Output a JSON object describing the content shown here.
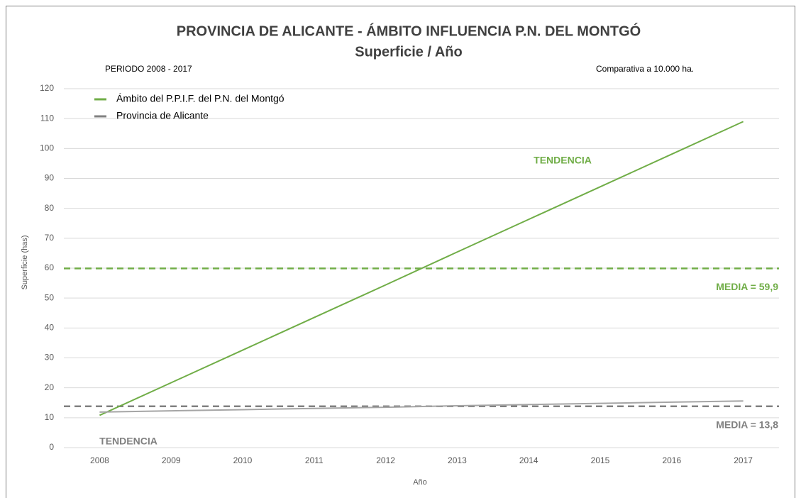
{
  "chart_data": {
    "type": "line",
    "title": "PROVINCIA DE ALICANTE - ÁMBITO INFLUENCIA P.N. DEL MONTGÓ",
    "subtitle": "Superficie / Año",
    "annotations": [
      {
        "text": "PERIODO 2008 - 2017",
        "color": "#000000"
      },
      {
        "text": "Comparativa a 10.000 ha.",
        "color": "#000000"
      },
      {
        "text": "TENDENCIA",
        "color": "#70ad47"
      },
      {
        "text": "TENDENCIA",
        "color": "#808080"
      }
    ],
    "x_label": "Año",
    "y_label": "Superficie (has)",
    "categories": [
      "2008",
      "2009",
      "2010",
      "2011",
      "2012",
      "2013",
      "2014",
      "2015",
      "2016",
      "2017"
    ],
    "series": [
      {
        "name": "Ámbito del P.P.I.F. del  P.N. del Montgó",
        "color": "#70ad47",
        "values": [
          10.8,
          21.7,
          32.6,
          43.5,
          54.4,
          65.4,
          76.3,
          87.2,
          98.1,
          109.0
        ]
      },
      {
        "name": "Provincia de Alicante",
        "color": "#a5a5a5",
        "values": [
          11.9,
          12.3,
          12.7,
          13.1,
          13.5,
          14.0,
          14.4,
          14.8,
          15.2,
          15.6
        ]
      }
    ],
    "reference_lines": [
      {
        "value": 59.9,
        "label": "MEDIA = 59,9",
        "color": "#70ad47"
      },
      {
        "value": 13.8,
        "label": "MEDIA = 13,8",
        "color": "#808080"
      }
    ],
    "ylim": [
      0,
      120
    ],
    "yticks": [
      0,
      10,
      20,
      30,
      40,
      50,
      60,
      70,
      80,
      90,
      100,
      110,
      120
    ],
    "grid": true,
    "legend": "top-left"
  }
}
